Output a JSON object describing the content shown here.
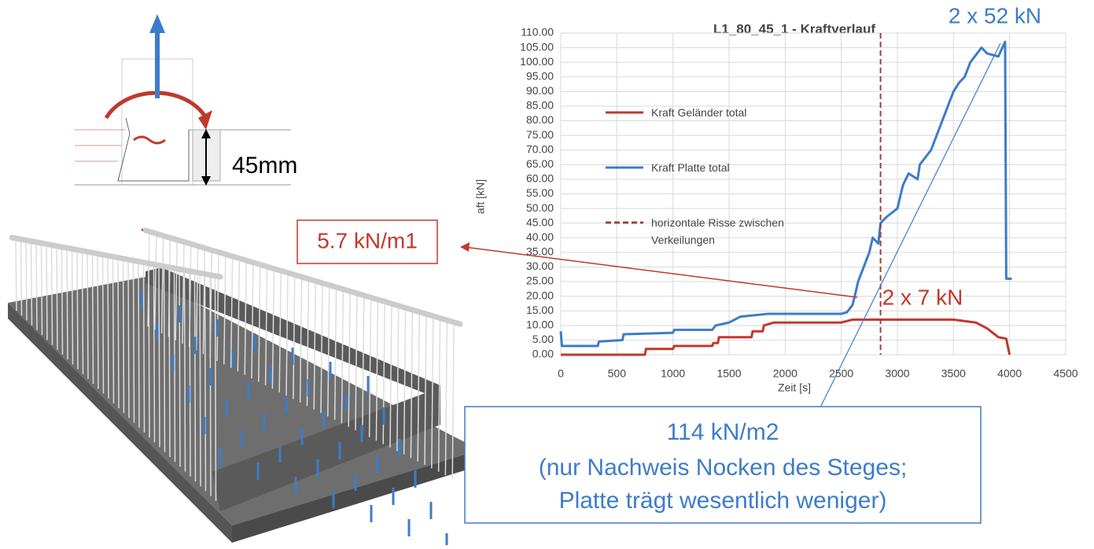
{
  "chart_data": {
    "type": "line",
    "title": "L1_80_45_1 - Kraftverlauf",
    "x_label": "Zeit [s]",
    "y_label": "aft [kN]",
    "xlim": [
      0,
      4500
    ],
    "xticks": [
      0,
      500,
      1000,
      1500,
      2000,
      2500,
      3000,
      3500,
      4000,
      4500
    ],
    "ylim": [
      0,
      110
    ],
    "yticks": [
      {
        "value": 0,
        "label": "0.00"
      },
      {
        "value": 5,
        "label": "5.00"
      },
      {
        "value": 10,
        "label": "10.00"
      },
      {
        "value": 15,
        "label": "15.00"
      },
      {
        "value": 20,
        "label": "20.00"
      },
      {
        "value": 25,
        "label": "25.00"
      },
      {
        "value": 30,
        "label": "30.00"
      },
      {
        "value": 35,
        "label": "35.00"
      },
      {
        "value": 40,
        "label": "40.00"
      },
      {
        "value": 45,
        "label": "45.00"
      },
      {
        "value": 50,
        "label": "50.00"
      },
      {
        "value": 55,
        "label": "55.00"
      },
      {
        "value": 60,
        "label": "60.00"
      },
      {
        "value": 65,
        "label": "65.00"
      },
      {
        "value": 70,
        "label": "70.00"
      },
      {
        "value": 75,
        "label": "75.00"
      },
      {
        "value": 80,
        "label": "80.00"
      },
      {
        "value": 85,
        "label": "85.00"
      },
      {
        "value": 90,
        "label": "90.00"
      },
      {
        "value": 95,
        "label": "95.00"
      },
      {
        "value": 100,
        "label": "100.00"
      },
      {
        "value": 105,
        "label": "105.00"
      },
      {
        "value": 110,
        "label": "110.00"
      }
    ],
    "grid": true,
    "series": [
      {
        "name": "Kraft Geländer total",
        "color": "#c0392b",
        "x": [
          0,
          750,
          760,
          1000,
          1010,
          1350,
          1360,
          1400,
          1410,
          1700,
          1710,
          1800,
          1810,
          1900,
          2500,
          2600,
          3500,
          3700,
          3800,
          3900,
          3970,
          4000
        ],
        "values": [
          0,
          0,
          2,
          2,
          3,
          3,
          4,
          4,
          6,
          6,
          8,
          8,
          10,
          11,
          11,
          12,
          12,
          11,
          9,
          6,
          5.5,
          0
        ]
      },
      {
        "name": "Kraft Platte total",
        "color": "#3d7cc9",
        "x": [
          0,
          10,
          330,
          340,
          550,
          560,
          1000,
          1010,
          1350,
          1380,
          1500,
          1600,
          1850,
          2500,
          2550,
          2600,
          2620,
          2650,
          2700,
          2750,
          2780,
          2830,
          2850,
          2900,
          3000,
          3050,
          3100,
          3180,
          3200,
          3300,
          3350,
          3400,
          3450,
          3500,
          3550,
          3600,
          3650,
          3750,
          3800,
          3900,
          3960,
          3970,
          4020
        ],
        "values": [
          8,
          3,
          3,
          4.5,
          5,
          7,
          7.5,
          8.5,
          8.5,
          10,
          11,
          13,
          14,
          14,
          14.5,
          17,
          20,
          25,
          30,
          35,
          40,
          38,
          45,
          47,
          50,
          58,
          62,
          60,
          65,
          70,
          75,
          80,
          85,
          90,
          93,
          95,
          100,
          105,
          103,
          102,
          107,
          26,
          26
        ]
      }
    ],
    "vlines": [
      {
        "name": "horizontale Risse zwischen Verkeilungen",
        "x": 2850,
        "color": "#a0403a"
      }
    ]
  },
  "annotations": {
    "dimension": "45mm",
    "top_force": "2 x 52 kN",
    "line_load": "5.7 kN/m1",
    "mid_force": "2 x 7 kN",
    "area_load": [
      "114 kN/m2",
      "(nur Nachweis Nocken des Steges;",
      "Platte trägt wesentlich weniger)"
    ]
  }
}
